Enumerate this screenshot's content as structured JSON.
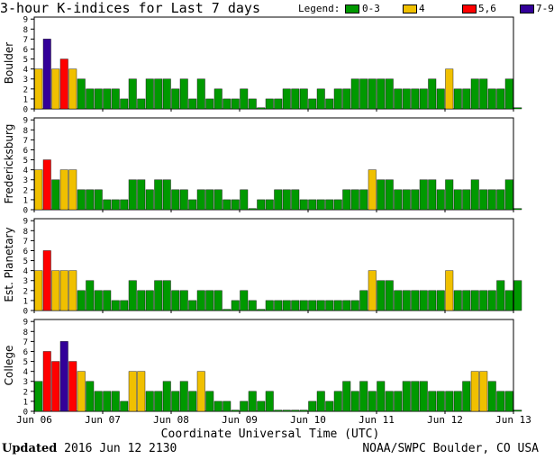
{
  "title": "3-hour K-indices for Last 7 days",
  "legend": {
    "label": "Legend:",
    "items": [
      {
        "label": "0-3",
        "color": "#009900"
      },
      {
        "label": "4",
        "color": "#f0c000"
      },
      {
        "label": "5,6",
        "color": "#ff0000"
      },
      {
        "label": "7-9",
        "color": "#330099"
      }
    ]
  },
  "footer": {
    "updated_label": "Updated",
    "updated_value": "2016 Jun 12 2130",
    "credit": "NOAA/SWPC Boulder, CO USA"
  },
  "chart_data": {
    "type": "bar",
    "xlabel": "Coordinate Universal Time (UTC)",
    "x_ticks": [
      "Jun 06",
      "Jun 07",
      "Jun 08",
      "Jun 09",
      "Jun 10",
      "Jun 11",
      "Jun 12",
      "Jun 13"
    ],
    "y_ticks": [
      "0",
      "1",
      "2",
      "3",
      "4",
      "5",
      "6",
      "7",
      "8",
      "9"
    ],
    "ylim": [
      0,
      9
    ],
    "bins_per_day": 8,
    "color_scale": [
      {
        "range": "0-3",
        "color": "#009900"
      },
      {
        "range": "4",
        "color": "#f0c000"
      },
      {
        "range": "5,6",
        "color": "#ff0000"
      },
      {
        "range": "7-9",
        "color": "#330099"
      }
    ],
    "panels": [
      {
        "name": "Boulder",
        "values": [
          4,
          7,
          4,
          5,
          4,
          3,
          2,
          2,
          2,
          2,
          1,
          3,
          1,
          3,
          3,
          3,
          2,
          3,
          1,
          3,
          1,
          2,
          1,
          1,
          2,
          1,
          0,
          1,
          1,
          2,
          2,
          2,
          1,
          2,
          1,
          2,
          2,
          3,
          3,
          3,
          3,
          3,
          2,
          2,
          2,
          2,
          3,
          2,
          4,
          2,
          2,
          3,
          3,
          2,
          2,
          3,
          0
        ]
      },
      {
        "name": "Fredericksburg",
        "values": [
          4,
          5,
          3,
          4,
          4,
          2,
          2,
          2,
          1,
          1,
          1,
          3,
          3,
          2,
          3,
          3,
          2,
          2,
          1,
          2,
          2,
          2,
          1,
          1,
          2,
          0,
          1,
          1,
          2,
          2,
          2,
          1,
          1,
          1,
          1,
          1,
          2,
          2,
          2,
          4,
          3,
          3,
          2,
          2,
          2,
          3,
          3,
          2,
          3,
          2,
          2,
          3,
          2,
          2,
          2,
          3,
          0
        ]
      },
      {
        "name": "Est. Planetary",
        "values": [
          4,
          6,
          4,
          4,
          4,
          2,
          3,
          2,
          2,
          1,
          1,
          3,
          2,
          2,
          3,
          3,
          2,
          2,
          1,
          2,
          2,
          2,
          0,
          1,
          2,
          1,
          0,
          1,
          1,
          1,
          1,
          1,
          1,
          1,
          1,
          1,
          1,
          1,
          2,
          4,
          3,
          3,
          2,
          2,
          2,
          2,
          2,
          2,
          4,
          2,
          2,
          2,
          2,
          2,
          3,
          2,
          3
        ]
      },
      {
        "name": "College",
        "values": [
          3,
          6,
          5,
          7,
          5,
          4,
          3,
          2,
          2,
          2,
          1,
          4,
          4,
          2,
          2,
          3,
          2,
          3,
          2,
          4,
          2,
          1,
          1,
          0,
          1,
          2,
          1,
          2,
          0,
          0,
          0,
          0,
          1,
          2,
          1,
          2,
          3,
          2,
          3,
          2,
          3,
          2,
          2,
          3,
          3,
          3,
          2,
          2,
          2,
          2,
          3,
          4,
          4,
          3,
          2,
          2,
          0
        ]
      }
    ]
  }
}
